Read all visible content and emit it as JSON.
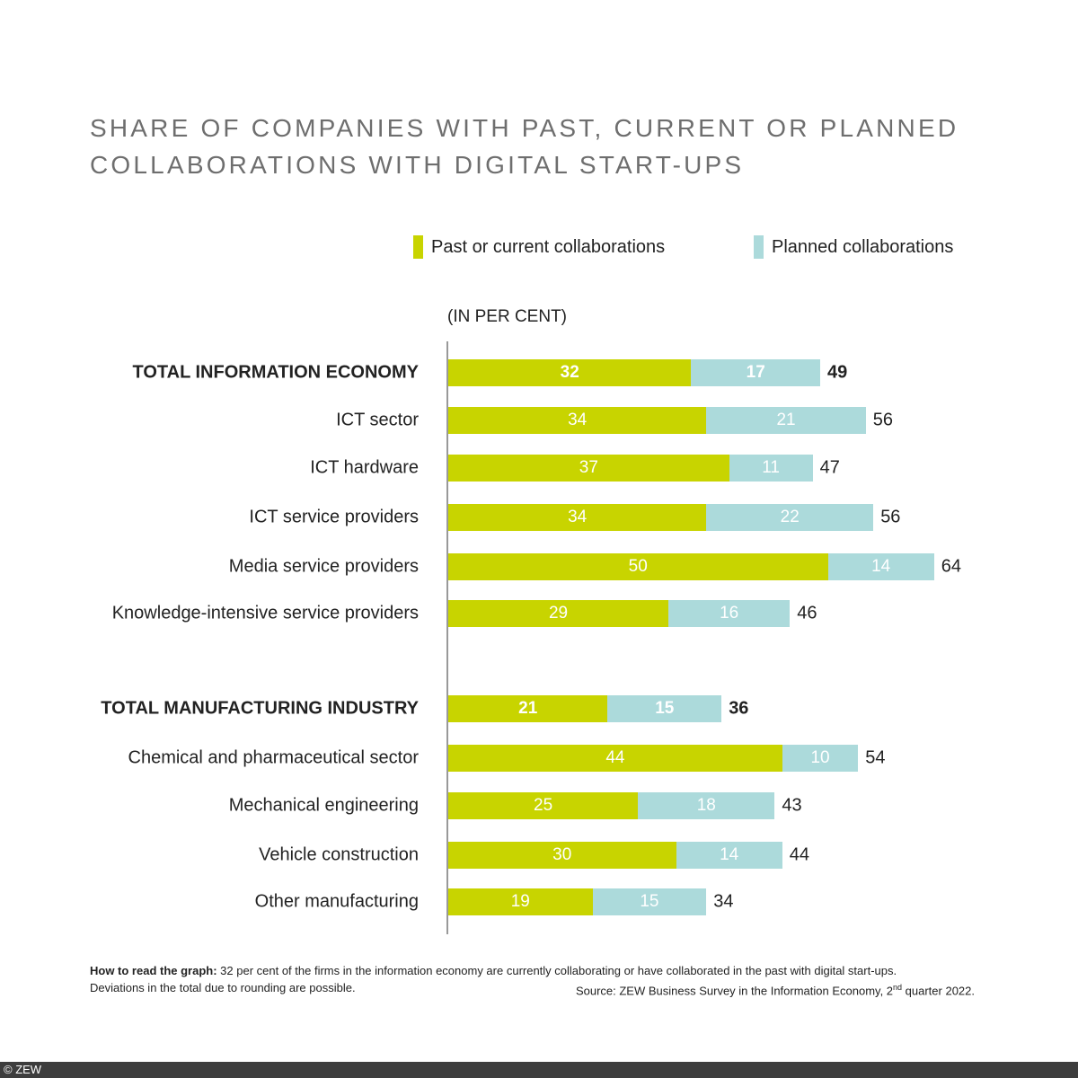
{
  "chart_data": {
    "type": "bar",
    "orientation": "horizontal",
    "stacked": true,
    "title": "SHARE OF COMPANIES WITH PAST, CURRENT OR PLANNED COLLABORATIONS WITH DIGITAL START-UPS",
    "title_lines": [
      "SHARE OF COMPANIES WITH PAST, CURRENT OR PLANNED",
      "COLLABORATIONS WITH DIGITAL START-UPS"
    ],
    "unit_label": "(IN PER CENT)",
    "legend_placement": "top-right",
    "grid": false,
    "xlim": [
      0,
      70
    ],
    "series": [
      {
        "name": "Past or current collaborations",
        "color": "#c8d400",
        "values": [
          32,
          34,
          37,
          34,
          50,
          29,
          21,
          44,
          25,
          30,
          19
        ]
      },
      {
        "name": "Planned collaborations",
        "color": "#acdadb",
        "values": [
          17,
          21,
          11,
          22,
          14,
          16,
          15,
          10,
          18,
          14,
          15
        ]
      }
    ],
    "categories": [
      "TOTAL INFORMATION ECONOMY",
      "ICT sector",
      "ICT hardware",
      "ICT service providers",
      "Media service providers",
      "Knowledge-intensive service providers",
      "TOTAL MANUFACTURING INDUSTRY",
      "Chemical and pharmaceutical sector",
      "Mechanical engineering",
      "Vehicle construction",
      "Other manufacturing"
    ],
    "totals": [
      49,
      56,
      47,
      56,
      64,
      46,
      36,
      54,
      43,
      44,
      34
    ],
    "bold_categories": [
      "TOTAL INFORMATION ECONOMY",
      "TOTAL MANUFACTURING INDUSTRY"
    ]
  },
  "note": {
    "lead": "How to read the graph:",
    "text": " 32 per cent of the firms in the information economy are currently collaborating or have collaborated in the past with digital start-ups.",
    "deviations": "Deviations in the total due to rounding are possible.",
    "source_prefix": "Source: ZEW Business Survey in the Information Economy, 2",
    "source_sup": "nd",
    "source_suffix": " quarter 2022."
  },
  "footer": {
    "copyright": "© ZEW"
  }
}
